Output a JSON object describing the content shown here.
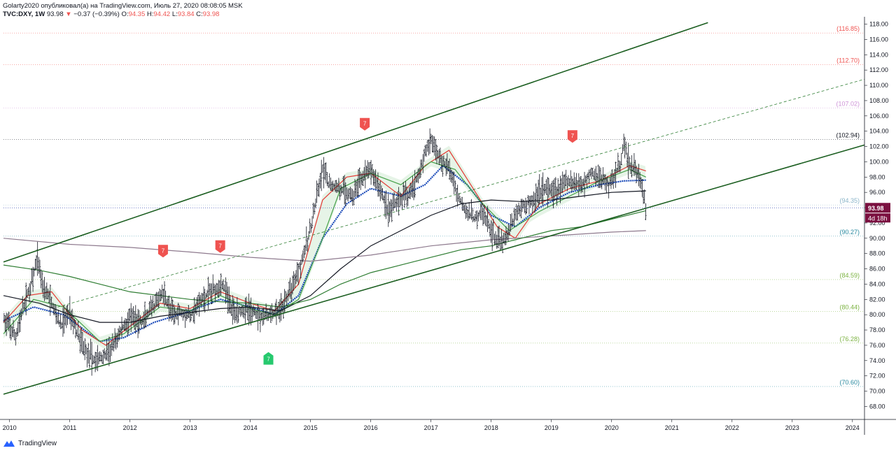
{
  "header": {
    "line1": "Golarty2020 опубликовал(а) на TradingView.com, Июль 27, 2020 08:08:05 MSK",
    "symbol": "TVC:DXY, 1W",
    "last": "93.98",
    "change": "−0.37 (−0.39%)",
    "o_label": "O:",
    "o": "94.35",
    "h_label": "H:",
    "h": "94.42",
    "l_label": "L:",
    "l": "93.84",
    "c_label": "C:",
    "c": "93.98"
  },
  "footer": {
    "brand": "TradingView"
  },
  "colors": {
    "channel": "#1b5e20",
    "price_bar": "#131722",
    "sma_blue": "#1848b8",
    "ma_red": "#e53935",
    "ma_green": "#43a047",
    "ma_black": "#131722",
    "ma_grey": "#8e7a8e",
    "ma_olive": "#2e7d32",
    "last_price_tag": "#7b1040",
    "signal_red": "#ef5350",
    "signal_green": "#26c96e"
  },
  "chart_data": {
    "type": "candlestick",
    "symbol": "TVC:DXY",
    "interval": "1W",
    "x_axis": {
      "tick_labels": [
        "2010",
        "2011",
        "2012",
        "2013",
        "2014",
        "2015",
        "2016",
        "2017",
        "2018",
        "2019",
        "2020",
        "2021",
        "2022",
        "2023",
        "2024"
      ],
      "range": [
        2009.9,
        2024.2
      ]
    },
    "y_axis": {
      "range": [
        66.3,
        118.6
      ],
      "tick_labels": [
        "68.00",
        "70.00",
        "72.00",
        "74.00",
        "76.00",
        "78.00",
        "80.00",
        "82.00",
        "84.00",
        "86.00",
        "88.00",
        "90.00",
        "92.00",
        "94.00",
        "96.00",
        "98.00",
        "100.00",
        "102.00",
        "104.00",
        "106.00",
        "108.00",
        "110.00",
        "112.00",
        "114.00",
        "116.00",
        "118.00"
      ]
    },
    "last_price": {
      "value": 93.98,
      "label": "93.98",
      "countdown": "4d 18h"
    },
    "fib_levels": [
      {
        "label": "(116.85)",
        "value": 116.85,
        "color": "#ef5350"
      },
      {
        "label": "(112.70)",
        "value": 112.7,
        "color": "#ef5350"
      },
      {
        "label": "(107.02)",
        "value": 107.02,
        "color": "#ce93d8"
      },
      {
        "label": "(102.94)",
        "value": 102.94,
        "color": "#131722"
      },
      {
        "label": "(94.35)",
        "value": 94.35,
        "color": "#8ab4c8"
      },
      {
        "label": "(90.27)",
        "value": 90.27,
        "color": "#2a8aa0"
      },
      {
        "label": "(84.59)",
        "value": 84.59,
        "color": "#7cb342"
      },
      {
        "label": "(80.44)",
        "value": 80.44,
        "color": "#7cb342"
      },
      {
        "label": "(76.28)",
        "value": 76.28,
        "color": "#7cb342"
      },
      {
        "label": "(70.60)",
        "value": 70.6,
        "color": "#2a8aa0"
      }
    ],
    "channel_lines": [
      {
        "name": "upper",
        "x": [
          2009.9,
          2021.6
        ],
        "y": [
          86.9,
          118.2
        ]
      },
      {
        "name": "lower",
        "x": [
          2009.9,
          2024.2
        ],
        "y": [
          69.6,
          102.2
        ]
      },
      {
        "name": "mid",
        "style": "dashed",
        "x": [
          2010.8,
          2024.2
        ],
        "y": [
          81.0,
          110.8
        ]
      }
    ],
    "signals": [
      {
        "label": "7",
        "type": "sell",
        "x": 2015.9,
        "y": 105.0
      },
      {
        "label": "7",
        "type": "sell",
        "x": 2019.35,
        "y": 103.4
      },
      {
        "label": "7",
        "type": "sell",
        "x": 2012.55,
        "y": 88.4
      },
      {
        "label": "7",
        "type": "sell",
        "x": 2013.5,
        "y": 89.0
      },
      {
        "label": "7",
        "type": "buy",
        "x": 2014.3,
        "y": 74.2
      }
    ],
    "price_path": [
      [
        2009.9,
        79.5
      ],
      [
        2010.1,
        77.0
      ],
      [
        2010.25,
        81.5
      ],
      [
        2010.4,
        85.0
      ],
      [
        2010.46,
        87.5
      ],
      [
        2010.55,
        84.0
      ],
      [
        2010.7,
        81.5
      ],
      [
        2010.85,
        78.5
      ],
      [
        2011.0,
        80.5
      ],
      [
        2011.15,
        77.0
      ],
      [
        2011.3,
        75.0
      ],
      [
        2011.4,
        74.0
      ],
      [
        2011.55,
        74.5
      ],
      [
        2011.7,
        75.5
      ],
      [
        2011.85,
        78.0
      ],
      [
        2012.0,
        79.5
      ],
      [
        2012.2,
        79.0
      ],
      [
        2012.4,
        81.0
      ],
      [
        2012.55,
        83.0
      ],
      [
        2012.7,
        80.0
      ],
      [
        2012.85,
        80.5
      ],
      [
        2013.0,
        79.8
      ],
      [
        2013.2,
        82.0
      ],
      [
        2013.4,
        83.5
      ],
      [
        2013.55,
        84.0
      ],
      [
        2013.7,
        80.5
      ],
      [
        2013.85,
        80.7
      ],
      [
        2014.0,
        80.5
      ],
      [
        2014.2,
        79.8
      ],
      [
        2014.35,
        80.0
      ],
      [
        2014.5,
        80.5
      ],
      [
        2014.65,
        83.0
      ],
      [
        2014.8,
        86.0
      ],
      [
        2014.95,
        89.5
      ],
      [
        2015.1,
        95.0
      ],
      [
        2015.2,
        99.0
      ],
      [
        2015.3,
        97.0
      ],
      [
        2015.5,
        96.5
      ],
      [
        2015.7,
        95.5
      ],
      [
        2015.85,
        98.0
      ],
      [
        2016.0,
        99.0
      ],
      [
        2016.15,
        96.5
      ],
      [
        2016.3,
        93.5
      ],
      [
        2016.45,
        95.0
      ],
      [
        2016.6,
        95.5
      ],
      [
        2016.75,
        97.5
      ],
      [
        2016.9,
        101.0
      ],
      [
        2017.0,
        103.0
      ],
      [
        2017.15,
        100.5
      ],
      [
        2017.3,
        99.0
      ],
      [
        2017.45,
        95.5
      ],
      [
        2017.6,
        93.5
      ],
      [
        2017.7,
        92.5
      ],
      [
        2017.85,
        93.5
      ],
      [
        2018.0,
        91.0
      ],
      [
        2018.1,
        89.5
      ],
      [
        2018.25,
        90.0
      ],
      [
        2018.4,
        93.0
      ],
      [
        2018.55,
        94.5
      ],
      [
        2018.7,
        95.0
      ],
      [
        2018.85,
        96.5
      ],
      [
        2019.0,
        96.0
      ],
      [
        2019.2,
        97.0
      ],
      [
        2019.35,
        97.5
      ],
      [
        2019.5,
        97.0
      ],
      [
        2019.65,
        98.5
      ],
      [
        2019.8,
        98.0
      ],
      [
        2019.95,
        97.0
      ],
      [
        2020.05,
        98.5
      ],
      [
        2020.15,
        99.5
      ],
      [
        2020.2,
        102.5
      ],
      [
        2020.3,
        99.5
      ],
      [
        2020.4,
        99.0
      ],
      [
        2020.5,
        97.0
      ],
      [
        2020.57,
        93.98
      ]
    ],
    "moving_averages": [
      {
        "color_key": "sma_blue",
        "style": "dotted",
        "points": [
          [
            2009.9,
            79.2
          ],
          [
            2010.4,
            81.0
          ],
          [
            2010.9,
            80.0
          ],
          [
            2011.5,
            76.5
          ],
          [
            2011.9,
            77.0
          ],
          [
            2012.4,
            79.0
          ],
          [
            2012.9,
            80.2
          ],
          [
            2013.5,
            82.0
          ],
          [
            2014.0,
            81.0
          ],
          [
            2014.4,
            80.0
          ],
          [
            2014.8,
            82.5
          ],
          [
            2015.2,
            90.0
          ],
          [
            2015.6,
            94.5
          ],
          [
            2016.0,
            96.5
          ],
          [
            2016.5,
            95.5
          ],
          [
            2016.9,
            97.0
          ],
          [
            2017.2,
            99.5
          ],
          [
            2017.6,
            97.0
          ],
          [
            2018.0,
            93.0
          ],
          [
            2018.4,
            91.5
          ],
          [
            2018.8,
            94.0
          ],
          [
            2019.3,
            96.0
          ],
          [
            2019.8,
            97.0
          ],
          [
            2020.2,
            97.5
          ],
          [
            2020.57,
            97.6
          ]
        ]
      },
      {
        "color_key": "ma_red",
        "style": "solid",
        "points": [
          [
            2009.9,
            79.0
          ],
          [
            2010.3,
            82.5
          ],
          [
            2010.7,
            83.0
          ],
          [
            2011.2,
            78.0
          ],
          [
            2011.6,
            76.0
          ],
          [
            2012.0,
            78.5
          ],
          [
            2012.5,
            81.5
          ],
          [
            2013.0,
            80.8
          ],
          [
            2013.5,
            83.0
          ],
          [
            2014.0,
            81.5
          ],
          [
            2014.4,
            80.5
          ],
          [
            2014.8,
            84.0
          ],
          [
            2015.2,
            95.0
          ],
          [
            2015.6,
            98.0
          ],
          [
            2016.0,
            98.5
          ],
          [
            2016.5,
            95.5
          ],
          [
            2016.9,
            99.5
          ],
          [
            2017.3,
            101.5
          ],
          [
            2017.7,
            96.5
          ],
          [
            2018.1,
            91.5
          ],
          [
            2018.4,
            90.0
          ],
          [
            2018.8,
            94.5
          ],
          [
            2019.3,
            96.5
          ],
          [
            2019.8,
            97.5
          ],
          [
            2020.3,
            99.5
          ],
          [
            2020.57,
            98.8
          ]
        ]
      },
      {
        "color_key": "ma_green",
        "style": "solid",
        "points": [
          [
            2009.9,
            77.5
          ],
          [
            2010.4,
            82.0
          ],
          [
            2010.9,
            81.0
          ],
          [
            2011.5,
            76.5
          ],
          [
            2011.9,
            77.5
          ],
          [
            2012.5,
            81.0
          ],
          [
            2013.0,
            80.5
          ],
          [
            2013.5,
            82.5
          ],
          [
            2014.0,
            80.8
          ],
          [
            2014.4,
            80.0
          ],
          [
            2014.8,
            82.0
          ],
          [
            2015.2,
            90.0
          ],
          [
            2015.5,
            96.5
          ],
          [
            2016.0,
            98.5
          ],
          [
            2016.5,
            97.0
          ],
          [
            2017.0,
            100.0
          ],
          [
            2017.4,
            99.0
          ],
          [
            2017.8,
            95.0
          ],
          [
            2018.3,
            91.0
          ],
          [
            2018.8,
            93.5
          ],
          [
            2019.3,
            95.5
          ],
          [
            2019.8,
            97.5
          ],
          [
            2020.3,
            99.0
          ],
          [
            2020.57,
            98.0
          ]
        ]
      },
      {
        "color_key": "ma_black",
        "style": "solid",
        "points": [
          [
            2009.9,
            82.5
          ],
          [
            2010.5,
            81.5
          ],
          [
            2011.0,
            80.0
          ],
          [
            2011.5,
            79.0
          ],
          [
            2012.0,
            79.0
          ],
          [
            2012.5,
            79.8
          ],
          [
            2013.0,
            80.3
          ],
          [
            2013.5,
            80.8
          ],
          [
            2014.0,
            81.0
          ],
          [
            2014.5,
            80.5
          ],
          [
            2015.0,
            82.5
          ],
          [
            2015.5,
            86.0
          ],
          [
            2016.0,
            89.0
          ],
          [
            2016.5,
            91.0
          ],
          [
            2017.0,
            93.0
          ],
          [
            2017.5,
            94.5
          ],
          [
            2018.0,
            95.0
          ],
          [
            2018.5,
            94.8
          ],
          [
            2019.0,
            95.0
          ],
          [
            2019.5,
            95.5
          ],
          [
            2020.0,
            96.0
          ],
          [
            2020.57,
            96.2
          ]
        ]
      },
      {
        "color_key": "ma_grey",
        "style": "solid",
        "points": [
          [
            2009.9,
            90.0
          ],
          [
            2011.0,
            89.2
          ],
          [
            2012.0,
            88.8
          ],
          [
            2013.0,
            88.2
          ],
          [
            2014.0,
            87.5
          ],
          [
            2015.0,
            87.0
          ],
          [
            2016.0,
            87.8
          ],
          [
            2017.0,
            89.0
          ],
          [
            2018.0,
            89.8
          ],
          [
            2019.0,
            90.3
          ],
          [
            2020.0,
            90.8
          ],
          [
            2020.57,
            91.0
          ]
        ]
      },
      {
        "color_key": "ma_olive",
        "style": "solid",
        "points": [
          [
            2009.9,
            86.5
          ],
          [
            2010.5,
            85.8
          ],
          [
            2011.0,
            85.0
          ],
          [
            2011.5,
            84.0
          ],
          [
            2012.0,
            83.0
          ],
          [
            2012.5,
            82.5
          ],
          [
            2013.0,
            82.0
          ],
          [
            2013.5,
            81.7
          ],
          [
            2014.0,
            81.5
          ],
          [
            2014.5,
            81.0
          ],
          [
            2015.0,
            82.0
          ],
          [
            2015.5,
            84.0
          ],
          [
            2016.0,
            85.5
          ],
          [
            2016.5,
            86.5
          ],
          [
            2017.0,
            87.5
          ],
          [
            2017.5,
            88.5
          ],
          [
            2018.0,
            89.0
          ],
          [
            2018.5,
            90.0
          ],
          [
            2019.0,
            91.0
          ],
          [
            2019.5,
            91.5
          ],
          [
            2020.0,
            92.5
          ],
          [
            2020.57,
            93.6
          ]
        ]
      }
    ]
  }
}
